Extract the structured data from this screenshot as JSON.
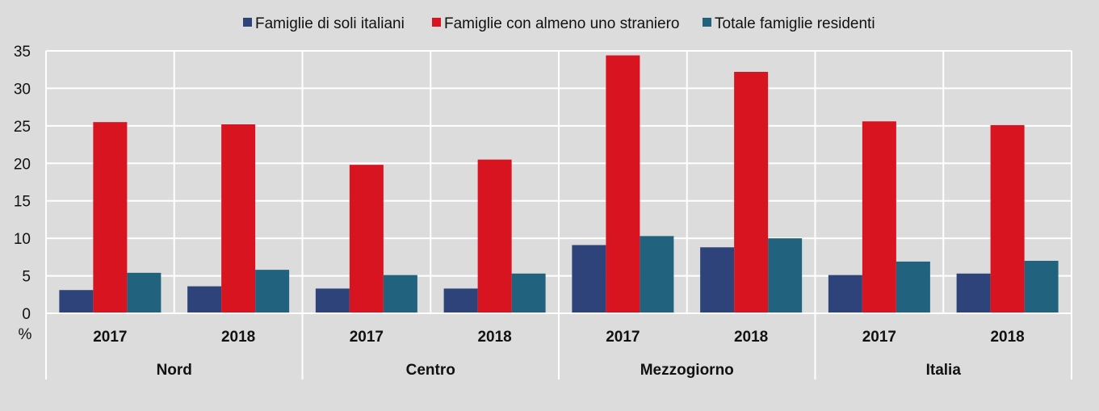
{
  "chart_data": {
    "type": "bar",
    "ylabel": "%",
    "ylim": [
      0,
      35
    ],
    "yticks": [
      0,
      5,
      10,
      15,
      20,
      25,
      30,
      35
    ],
    "grid": true,
    "legend_position": "top-center",
    "groups": [
      "Nord",
      "Centro",
      "Mezzogiorno",
      "Italia"
    ],
    "categories": [
      "2017",
      "2018",
      "2017",
      "2018",
      "2017",
      "2018",
      "2017",
      "2018"
    ],
    "series": [
      {
        "name": "Famiglie di soli italiani",
        "color": "#2e4379",
        "values": [
          3.1,
          3.6,
          3.3,
          3.3,
          9.1,
          8.8,
          5.1,
          5.3
        ]
      },
      {
        "name": "Famiglie con almeno uno straniero",
        "color": "#d81421",
        "values": [
          25.5,
          25.2,
          19.8,
          20.5,
          34.4,
          32.2,
          25.6,
          25.1
        ]
      },
      {
        "name": "Totale famiglie residenti",
        "color": "#21627e",
        "values": [
          5.4,
          5.8,
          5.1,
          5.3,
          10.3,
          10.0,
          6.9,
          7.0
        ]
      }
    ]
  }
}
